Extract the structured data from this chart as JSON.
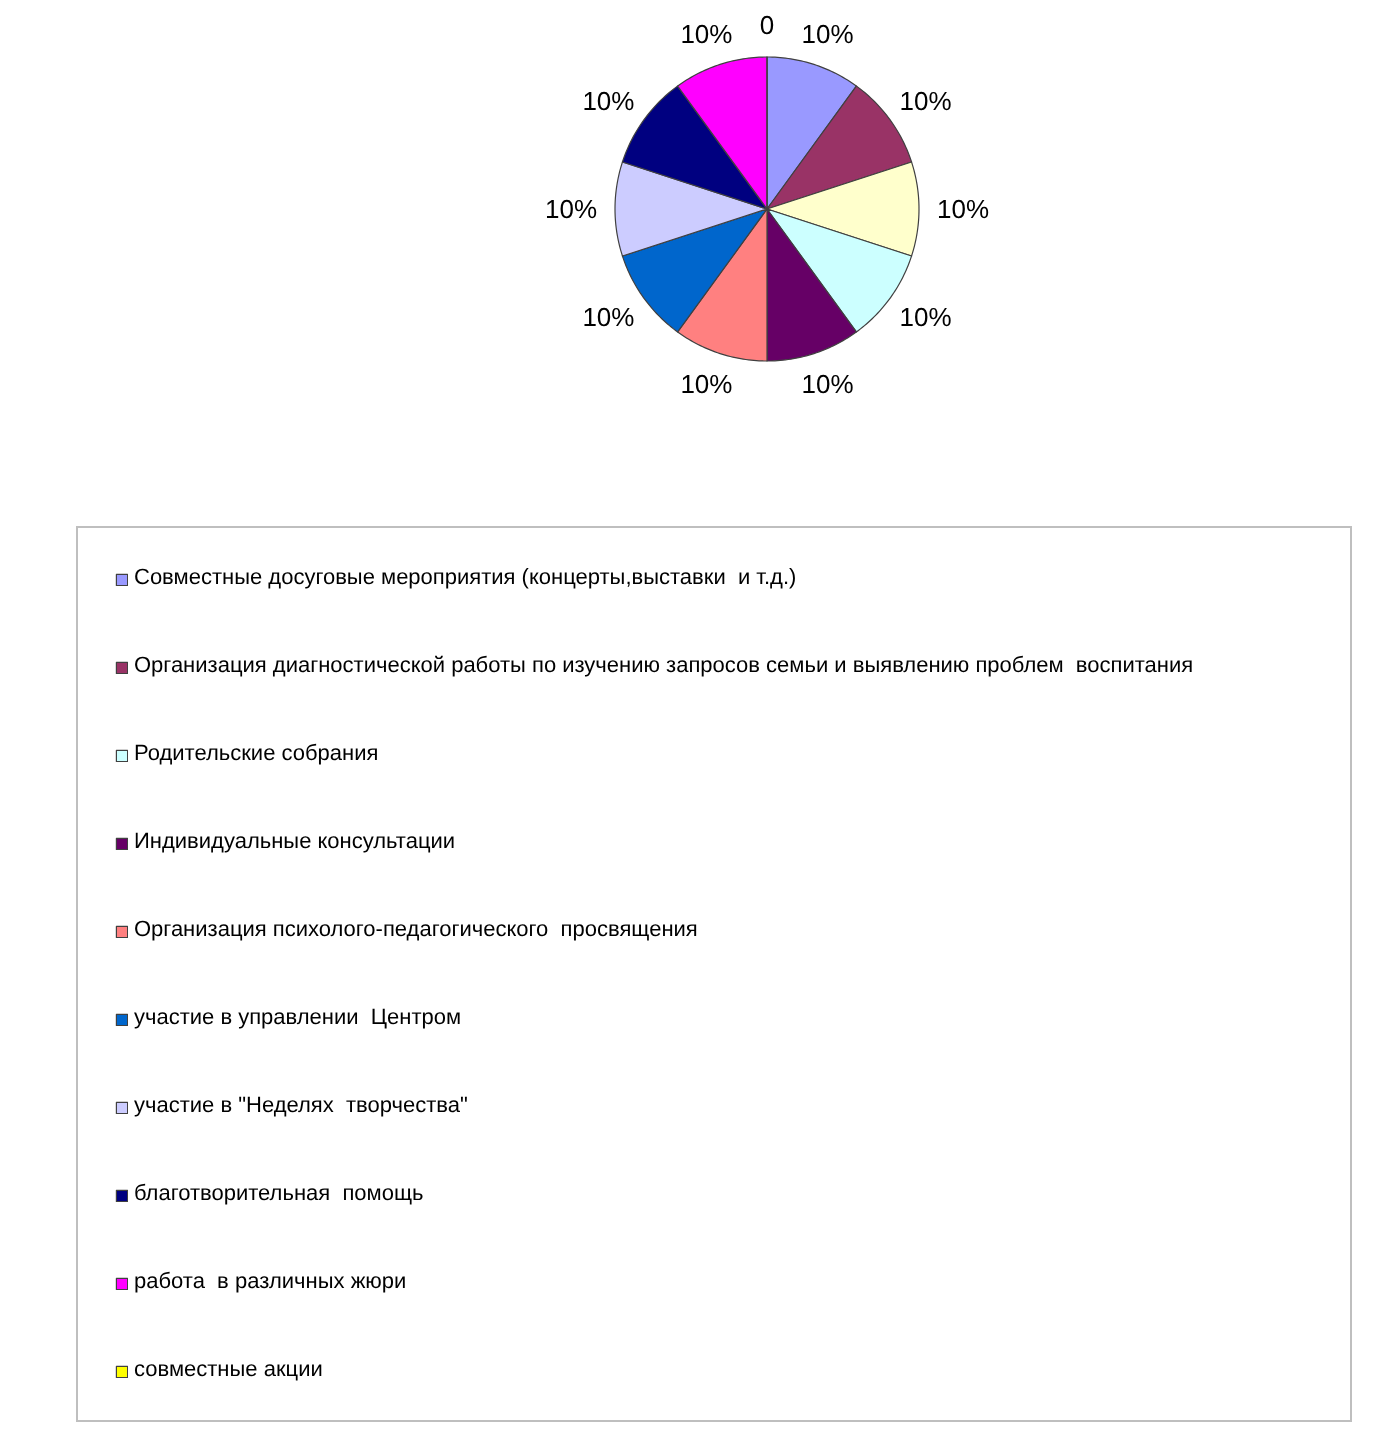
{
  "chart_data": {
    "type": "pie",
    "categories": [
      "Совместные досуговые мероприятия (концерты,выставки  и т.д.)",
      "Организация диагностической работы по изучению запросов семьи и выявлению проблем  воспитания",
      null,
      "Родительские собрания",
      "Индивидуальные консультации",
      "Организация психолого-педагогического  просвящения",
      "участие в управлении  Центром",
      "участие в \"Неделях  творчества\"",
      "благотворительная  помощь",
      "работа  в различных жюри",
      "совместные акции"
    ],
    "values": [
      10,
      10,
      10,
      10,
      10,
      10,
      10,
      10,
      10,
      10,
      0
    ],
    "colors": [
      "#9999ff",
      "#993366",
      "#ffffcc",
      "#ccffff",
      "#660066",
      "#ff8080",
      "#0066cc",
      "#ccccff",
      "#000080",
      "#ff00ff",
      "#ffff00"
    ],
    "value_labels": [
      "10%",
      "10%",
      "10%",
      "10%",
      "10%",
      "10%",
      "10%",
      "10%",
      "10%",
      "10%",
      "0"
    ],
    "legend": "bottom"
  }
}
